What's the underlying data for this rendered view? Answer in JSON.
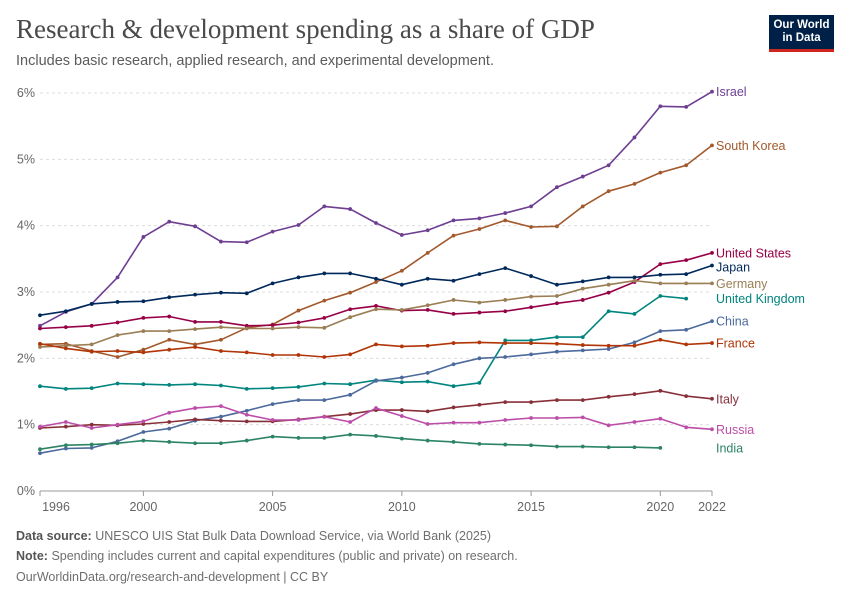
{
  "header": {
    "title": "Research & development spending as a share of GDP",
    "subtitle": "Includes basic research, applied research, and experimental development.",
    "logo_line1": "Our World",
    "logo_line2": "in Data"
  },
  "footer": {
    "source_label": "Data source:",
    "source_text": "UNESCO UIS Stat Bulk Data Download Service, via World Bank (2025)",
    "note_label": "Note:",
    "note_text": "Spending includes current and capital expenditures (public and private) on research.",
    "credit": "OurWorldinData.org/research-and-development | CC BY"
  },
  "chart_data": {
    "type": "line",
    "xlim": [
      1996,
      2022
    ],
    "ylim": [
      0,
      6
    ],
    "x_ticks": [
      1996,
      2000,
      2005,
      2010,
      2015,
      2020,
      2022
    ],
    "y_ticks": [
      {
        "value": 0,
        "label": "0%"
      },
      {
        "value": 1,
        "label": "1%"
      },
      {
        "value": 2,
        "label": "2%"
      },
      {
        "value": 3,
        "label": "3%"
      },
      {
        "value": 4,
        "label": "4%"
      },
      {
        "value": 5,
        "label": "5%"
      },
      {
        "value": 6,
        "label": "6%"
      }
    ],
    "grid": true,
    "legend_placement": "right, labels at line ends",
    "series": [
      {
        "name": "Israel",
        "color": "#6d3e91",
        "x": [
          1996,
          1997,
          1998,
          1999,
          2000,
          2001,
          2002,
          2003,
          2004,
          2005,
          2006,
          2007,
          2008,
          2009,
          2010,
          2011,
          2012,
          2013,
          2014,
          2015,
          2016,
          2017,
          2018,
          2019,
          2020,
          2021,
          2022
        ],
        "values": [
          2.49,
          2.7,
          2.82,
          3.22,
          3.83,
          4.06,
          3.99,
          3.76,
          3.75,
          3.91,
          4.01,
          4.29,
          4.25,
          4.04,
          3.86,
          3.93,
          4.08,
          4.11,
          4.19,
          4.29,
          4.58,
          4.74,
          4.91,
          5.33,
          5.8,
          5.79,
          6.02
        ]
      },
      {
        "name": "South Korea",
        "color": "#a2592c",
        "x": [
          1996,
          1997,
          1998,
          1999,
          2000,
          2001,
          2002,
          2003,
          2004,
          2005,
          2006,
          2007,
          2008,
          2009,
          2010,
          2011,
          2012,
          2013,
          2014,
          2015,
          2016,
          2017,
          2018,
          2019,
          2020,
          2021,
          2022
        ],
        "values": [
          2.21,
          2.22,
          2.11,
          2.02,
          2.13,
          2.28,
          2.21,
          2.28,
          2.46,
          2.51,
          2.72,
          2.87,
          2.99,
          3.15,
          3.32,
          3.59,
          3.85,
          3.95,
          4.08,
          3.98,
          3.99,
          4.29,
          4.52,
          4.63,
          4.8,
          4.91,
          5.21
        ]
      },
      {
        "name": "United States",
        "color": "#970046",
        "x": [
          1996,
          1997,
          1998,
          1999,
          2000,
          2001,
          2002,
          2003,
          2004,
          2005,
          2006,
          2007,
          2008,
          2009,
          2010,
          2011,
          2012,
          2013,
          2014,
          2015,
          2016,
          2017,
          2018,
          2019,
          2020,
          2021,
          2022
        ],
        "values": [
          2.45,
          2.47,
          2.49,
          2.54,
          2.61,
          2.63,
          2.55,
          2.55,
          2.49,
          2.5,
          2.54,
          2.61,
          2.74,
          2.79,
          2.72,
          2.73,
          2.67,
          2.69,
          2.71,
          2.77,
          2.83,
          2.88,
          2.99,
          3.15,
          3.42,
          3.48,
          3.59
        ]
      },
      {
        "name": "Japan",
        "color": "#00295b",
        "x": [
          1996,
          1997,
          1998,
          1999,
          2000,
          2001,
          2002,
          2003,
          2004,
          2005,
          2006,
          2007,
          2008,
          2009,
          2010,
          2011,
          2012,
          2013,
          2014,
          2015,
          2016,
          2017,
          2018,
          2019,
          2020,
          2021,
          2022
        ],
        "values": [
          2.65,
          2.71,
          2.82,
          2.85,
          2.86,
          2.92,
          2.96,
          2.99,
          2.98,
          3.13,
          3.22,
          3.28,
          3.28,
          3.2,
          3.11,
          3.2,
          3.17,
          3.27,
          3.36,
          3.24,
          3.11,
          3.16,
          3.22,
          3.22,
          3.26,
          3.27,
          3.4
        ]
      },
      {
        "name": "Germany",
        "color": "#9a7e54",
        "x": [
          1996,
          1997,
          1998,
          1999,
          2000,
          2001,
          2002,
          2003,
          2004,
          2005,
          2006,
          2007,
          2008,
          2009,
          2010,
          2011,
          2012,
          2013,
          2014,
          2015,
          2016,
          2017,
          2018,
          2019,
          2020,
          2021,
          2022
        ],
        "values": [
          2.17,
          2.19,
          2.21,
          2.35,
          2.41,
          2.41,
          2.44,
          2.47,
          2.45,
          2.45,
          2.47,
          2.46,
          2.62,
          2.74,
          2.73,
          2.8,
          2.88,
          2.84,
          2.88,
          2.93,
          2.94,
          3.05,
          3.11,
          3.17,
          3.13,
          3.13,
          3.13
        ]
      },
      {
        "name": "United Kingdom",
        "color": "#00847e",
        "x": [
          1996,
          1997,
          1998,
          1999,
          2000,
          2001,
          2002,
          2003,
          2004,
          2005,
          2006,
          2007,
          2008,
          2009,
          2010,
          2011,
          2012,
          2013,
          2014,
          2015,
          2016,
          2017,
          2018,
          2019,
          2020,
          2021
        ],
        "values": [
          1.58,
          1.54,
          1.55,
          1.62,
          1.61,
          1.6,
          1.61,
          1.59,
          1.54,
          1.55,
          1.57,
          1.62,
          1.61,
          1.67,
          1.64,
          1.65,
          1.58,
          1.63,
          2.27,
          2.27,
          2.32,
          2.32,
          2.71,
          2.67,
          2.94,
          2.9
        ]
      },
      {
        "name": "China",
        "color": "#4c6a9c",
        "x": [
          1996,
          1997,
          1998,
          1999,
          2000,
          2001,
          2002,
          2003,
          2004,
          2005,
          2006,
          2007,
          2008,
          2009,
          2010,
          2011,
          2012,
          2013,
          2014,
          2015,
          2016,
          2017,
          2018,
          2019,
          2020,
          2021,
          2022
        ],
        "values": [
          0.57,
          0.64,
          0.65,
          0.75,
          0.89,
          0.94,
          1.06,
          1.12,
          1.21,
          1.31,
          1.37,
          1.37,
          1.45,
          1.66,
          1.71,
          1.78,
          1.91,
          2.0,
          2.02,
          2.06,
          2.1,
          2.12,
          2.14,
          2.24,
          2.41,
          2.43,
          2.56
        ]
      },
      {
        "name": "France",
        "color": "#b13507",
        "x": [
          1996,
          1997,
          1998,
          1999,
          2000,
          2001,
          2002,
          2003,
          2004,
          2005,
          2006,
          2007,
          2008,
          2009,
          2010,
          2011,
          2012,
          2013,
          2014,
          2015,
          2016,
          2017,
          2018,
          2019,
          2020,
          2021,
          2022
        ],
        "values": [
          2.22,
          2.15,
          2.1,
          2.11,
          2.09,
          2.13,
          2.17,
          2.11,
          2.09,
          2.05,
          2.05,
          2.02,
          2.06,
          2.21,
          2.18,
          2.19,
          2.23,
          2.24,
          2.23,
          2.23,
          2.22,
          2.2,
          2.19,
          2.19,
          2.28,
          2.21,
          2.23
        ]
      },
      {
        "name": "Italy",
        "color": "#883039",
        "x": [
          1996,
          1997,
          1998,
          1999,
          2000,
          2001,
          2002,
          2003,
          2004,
          2005,
          2006,
          2007,
          2008,
          2009,
          2010,
          2011,
          2012,
          2013,
          2014,
          2015,
          2016,
          2017,
          2018,
          2019,
          2020,
          2021,
          2022
        ],
        "values": [
          0.95,
          0.97,
          1.0,
          0.99,
          1.01,
          1.04,
          1.08,
          1.06,
          1.05,
          1.05,
          1.08,
          1.12,
          1.16,
          1.22,
          1.22,
          1.2,
          1.26,
          1.3,
          1.34,
          1.34,
          1.37,
          1.37,
          1.42,
          1.46,
          1.51,
          1.43,
          1.39
        ]
      },
      {
        "name": "Russia",
        "color": "#bc4ea9",
        "x": [
          1996,
          1997,
          1998,
          1999,
          2000,
          2001,
          2002,
          2003,
          2004,
          2005,
          2006,
          2007,
          2008,
          2009,
          2010,
          2011,
          2012,
          2013,
          2014,
          2015,
          2016,
          2017,
          2018,
          2019,
          2020,
          2021,
          2022
        ],
        "values": [
          0.97,
          1.04,
          0.95,
          1.0,
          1.05,
          1.18,
          1.25,
          1.28,
          1.15,
          1.07,
          1.07,
          1.12,
          1.04,
          1.25,
          1.13,
          1.01,
          1.03,
          1.03,
          1.07,
          1.1,
          1.1,
          1.11,
          0.99,
          1.04,
          1.09,
          0.96,
          0.93
        ]
      },
      {
        "name": "India",
        "color": "#2c8465",
        "x": [
          1996,
          1997,
          1998,
          1999,
          2000,
          2001,
          2002,
          2003,
          2004,
          2005,
          2006,
          2007,
          2008,
          2009,
          2010,
          2011,
          2012,
          2013,
          2014,
          2015,
          2016,
          2017,
          2018,
          2019,
          2020
        ],
        "values": [
          0.63,
          0.69,
          0.7,
          0.72,
          0.76,
          0.74,
          0.72,
          0.72,
          0.76,
          0.82,
          0.8,
          0.8,
          0.85,
          0.83,
          0.79,
          0.76,
          0.74,
          0.71,
          0.7,
          0.69,
          0.67,
          0.67,
          0.66,
          0.66,
          0.65
        ]
      }
    ]
  }
}
